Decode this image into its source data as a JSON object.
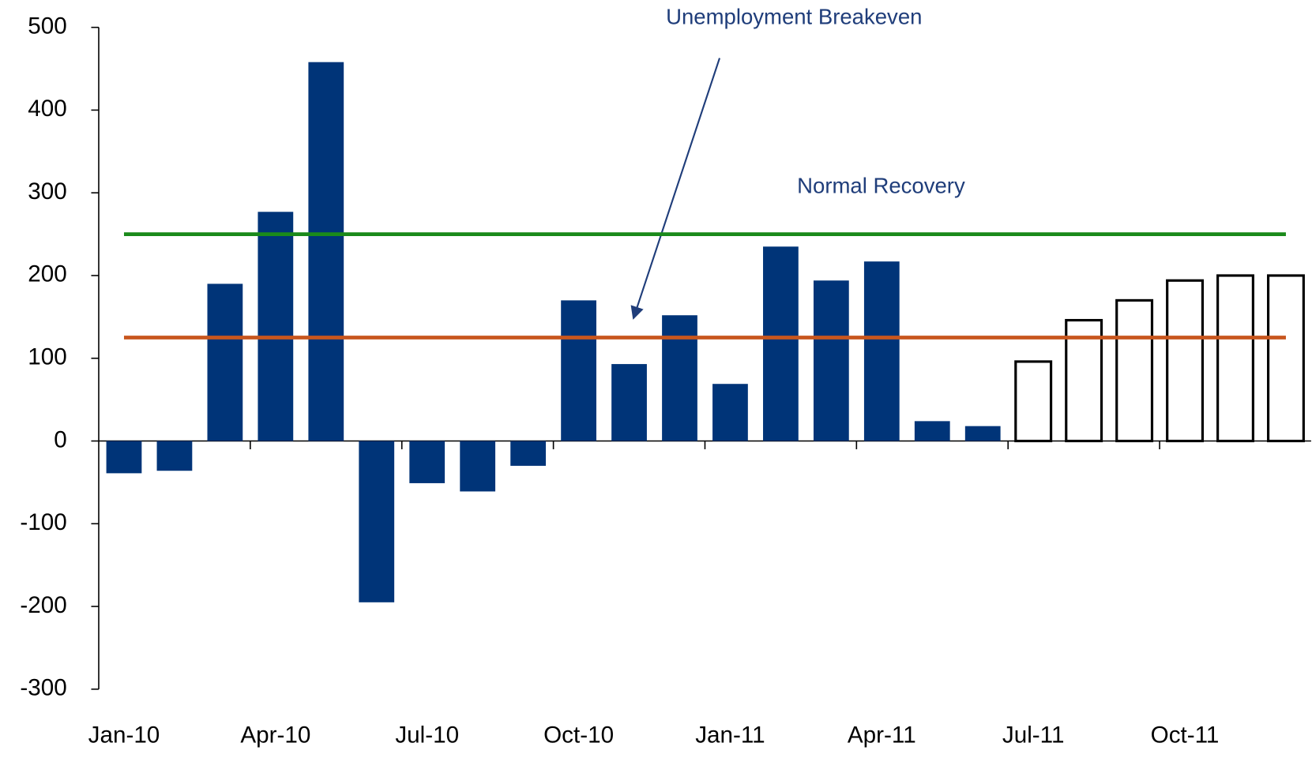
{
  "chart_data": {
    "type": "bar",
    "categories": [
      "Jan-10",
      null,
      null,
      "Apr-10",
      null,
      null,
      "Jul-10",
      null,
      null,
      "Oct-10",
      null,
      null,
      "Jan-11",
      null,
      null,
      "Apr-11",
      null,
      null,
      "Jul-11",
      null,
      null,
      "Oct-11",
      null,
      null
    ],
    "series": [
      {
        "color": "#003478",
        "values": [
          -39,
          -36,
          190,
          277,
          458,
          -195,
          -51,
          -61,
          -30,
          170,
          93,
          152,
          69,
          235,
          194,
          217,
          24,
          18,
          null,
          null,
          null,
          null,
          null,
          null
        ]
      },
      {
        "color": "#ffffff",
        "edgecolor": "#000000",
        "values": [
          null,
          null,
          null,
          null,
          null,
          null,
          null,
          null,
          null,
          null,
          null,
          null,
          null,
          null,
          null,
          null,
          null,
          null,
          96,
          146,
          170,
          194,
          200,
          200
        ]
      }
    ],
    "reference_lines": [
      {
        "label": "Normal Recovery",
        "value": 250,
        "color": "#1a8a1a"
      },
      {
        "label": "Unemployment Breakeven",
        "value": 125,
        "color": "#c8561e"
      }
    ],
    "ylim": [
      -300,
      500
    ],
    "yticks": [
      -300,
      -200,
      -100,
      0,
      100,
      200,
      300,
      400,
      500
    ],
    "grid": false
  }
}
